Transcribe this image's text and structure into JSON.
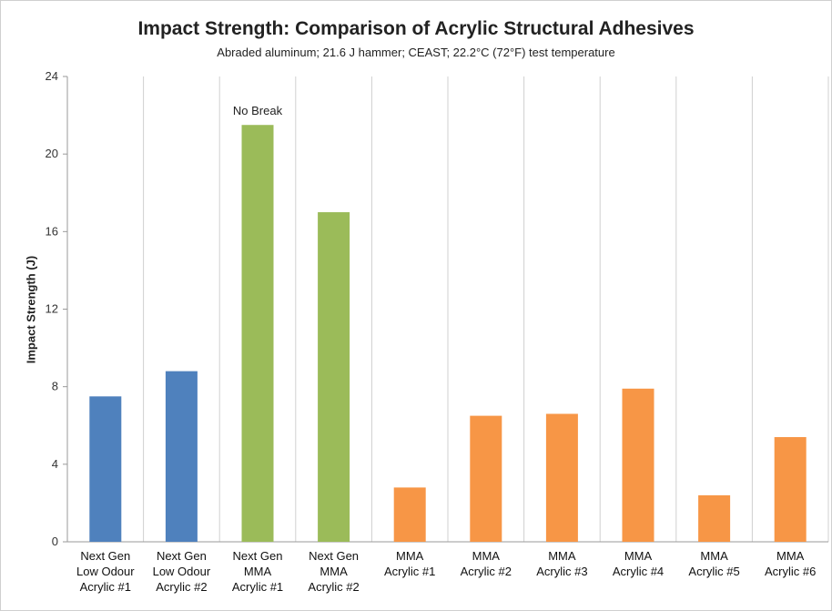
{
  "chart_data": {
    "type": "bar",
    "title": "Impact Strength:  Comparison of Acrylic Structural Adhesives",
    "subtitle": "Abraded aluminum; 21.6 J hammer; CEAST; 22.2°C (72°F) test temperature",
    "ylabel": "Impact Strength (J)",
    "xlabel": "",
    "ylim": [
      0,
      24
    ],
    "yticks": [
      0,
      4,
      8,
      12,
      16,
      20,
      24
    ],
    "grid": "vertical",
    "categories": [
      [
        "Next Gen",
        "Low Odour",
        "Acrylic #1"
      ],
      [
        "Next Gen",
        "Low Odour",
        "Acrylic #2"
      ],
      [
        "Next Gen",
        "MMA",
        "Acrylic #1"
      ],
      [
        "Next Gen",
        "MMA",
        "Acrylic #2"
      ],
      [
        "MMA",
        "Acrylic #1"
      ],
      [
        "MMA",
        "Acrylic #2"
      ],
      [
        "MMA",
        "Acrylic #3"
      ],
      [
        "MMA",
        "Acrylic #4"
      ],
      [
        "MMA",
        "Acrylic #5"
      ],
      [
        "MMA",
        "Acrylic #6"
      ]
    ],
    "values": [
      7.5,
      8.8,
      21.5,
      17.0,
      2.8,
      6.5,
      6.6,
      7.9,
      2.4,
      5.4
    ],
    "bar_colors": [
      "#4f81bd",
      "#4f81bd",
      "#9bbb59",
      "#9bbb59",
      "#f79646",
      "#f79646",
      "#f79646",
      "#f79646",
      "#f79646",
      "#f79646"
    ],
    "annotations": [
      {
        "category_index": 2,
        "text": "No Break"
      }
    ]
  }
}
